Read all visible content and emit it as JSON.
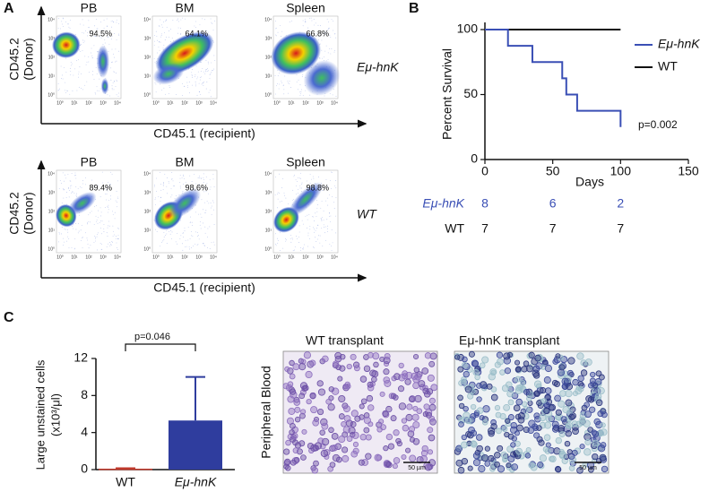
{
  "panel_labels": [
    "A",
    "B",
    "C"
  ],
  "flow": {
    "y_label": [
      "CD45.2",
      "(Donor)"
    ],
    "x_label": "CD45.1 (recipient)",
    "axis_ticks": [
      "10⁰",
      "10¹",
      "10²",
      "10³",
      "10⁴"
    ],
    "rows": [
      {
        "genotype": "Eμ-hnK",
        "plots": [
          {
            "title": "PB",
            "percent": "94.5%"
          },
          {
            "title": "BM",
            "percent": "64.1%"
          },
          {
            "title": "Spleen",
            "percent": "66.8%"
          }
        ]
      },
      {
        "genotype": "WT",
        "plots": [
          {
            "title": "PB",
            "percent": "89.4%"
          },
          {
            "title": "BM",
            "percent": "98.6%"
          },
          {
            "title": "Spleen",
            "percent": "98.8%"
          }
        ]
      }
    ]
  },
  "chart_data": [
    {
      "type": "line",
      "step": true,
      "y_label": "Percent Survival",
      "x_label": "Days",
      "xlim": [
        0,
        150
      ],
      "xticks": [
        0,
        50,
        100,
        150
      ],
      "ylim": [
        0,
        100
      ],
      "yticks": [
        0,
        50,
        100
      ],
      "annotation": "p=0.002",
      "series": [
        {
          "name": "Eμ-hnK",
          "color": "#3a4fb5",
          "x": [
            0,
            17,
            35,
            57,
            60,
            68,
            100
          ],
          "values": [
            100,
            87.5,
            75,
            62.5,
            50,
            37.5,
            25
          ]
        },
        {
          "name": "WT",
          "color": "#111111",
          "x": [
            0,
            100
          ],
          "values": [
            100,
            100
          ]
        }
      ]
    },
    {
      "type": "bar",
      "y_label": [
        "Large unstained cells",
        "(x10³/μl)"
      ],
      "categories": [
        "WT",
        "Eμ-hnK"
      ],
      "values": [
        0.1,
        5.3
      ],
      "errors": [
        0.05,
        4.7
      ],
      "colors": [
        "#c0392b",
        "#2f3d9e"
      ],
      "ylim": [
        0,
        12
      ],
      "yticks": [
        0,
        4,
        8,
        12
      ],
      "annotation": "p=0.046"
    }
  ],
  "risk_table": {
    "rows": [
      {
        "name": "Eμ-hnK",
        "color": "#3a4fb5",
        "counts": [
          8,
          6,
          2
        ]
      },
      {
        "name": "WT",
        "color": "#111111",
        "counts": [
          7,
          7,
          7
        ]
      }
    ]
  },
  "smear": {
    "y_label": "Peripheral Blood",
    "images": [
      {
        "title": "WT transplant"
      },
      {
        "title": "Eμ-hnK transplant"
      }
    ],
    "scale_bar": "50 µm"
  }
}
